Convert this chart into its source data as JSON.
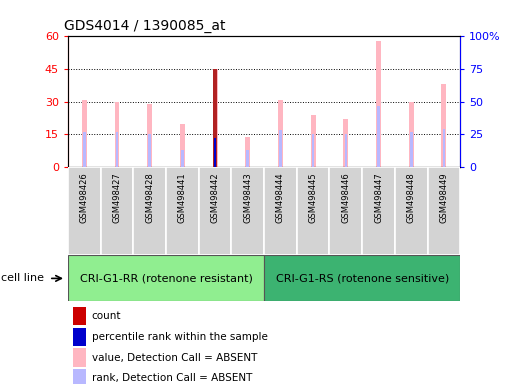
{
  "title": "GDS4014 / 1390085_at",
  "samples": [
    "GSM498426",
    "GSM498427",
    "GSM498428",
    "GSM498441",
    "GSM498442",
    "GSM498443",
    "GSM498444",
    "GSM498445",
    "GSM498446",
    "GSM498447",
    "GSM498448",
    "GSM498449"
  ],
  "group1_count": 6,
  "group2_count": 6,
  "group1_label": "CRI-G1-RR (rotenone resistant)",
  "group2_label": "CRI-G1-RS (rotenone sensitive)",
  "cell_line_label": "cell line",
  "ylim_left": [
    0,
    60
  ],
  "ylim_right": [
    0,
    100
  ],
  "yticks_left": [
    0,
    15,
    30,
    45,
    60
  ],
  "ytick_labels_left": [
    "0",
    "15",
    "30",
    "45",
    "60"
  ],
  "yticks_right": [
    0,
    25,
    50,
    75,
    100
  ],
  "ytick_labels_right": [
    "0",
    "25",
    "50",
    "75",
    "100%"
  ],
  "value_absent": [
    31,
    30,
    29,
    20,
    45,
    14,
    31,
    24,
    22,
    58,
    30,
    38
  ],
  "rank_absent": [
    27,
    27,
    25,
    13,
    22,
    13,
    28,
    25,
    25,
    47,
    27,
    29
  ],
  "count_value": [
    0,
    0,
    0,
    0,
    45,
    0,
    0,
    0,
    0,
    0,
    0,
    0
  ],
  "percentile_value": [
    0,
    0,
    0,
    0,
    22,
    0,
    0,
    0,
    0,
    0,
    0,
    0
  ],
  "color_value_absent": "#FFB6C1",
  "color_rank_absent": "#B8B8FF",
  "color_count": "#B22222",
  "color_percentile": "#0000CD",
  "group1_bg": "#90EE90",
  "group2_bg": "#3CB371",
  "sample_bg": "#D3D3D3",
  "legend_items": [
    {
      "label": "count",
      "color": "#CC0000"
    },
    {
      "label": "percentile rank within the sample",
      "color": "#0000CC"
    },
    {
      "label": "value, Detection Call = ABSENT",
      "color": "#FFB6C1"
    },
    {
      "label": "rank, Detection Call = ABSENT",
      "color": "#B8B8FF"
    }
  ],
  "title_fontsize": 10,
  "axis_fontsize": 8,
  "sample_fontsize": 6,
  "group_fontsize": 8,
  "legend_fontsize": 7.5
}
